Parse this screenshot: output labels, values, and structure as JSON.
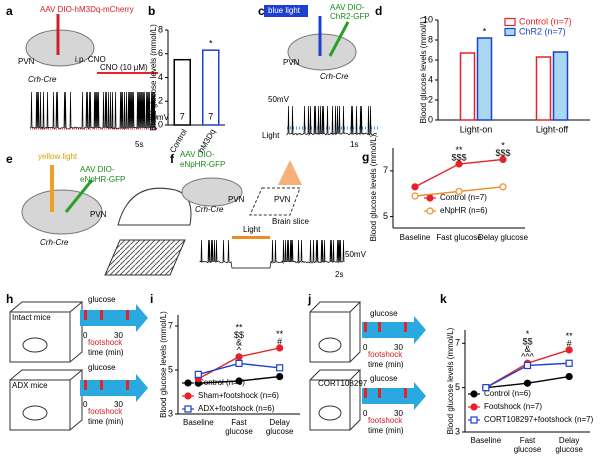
{
  "panel_labels": [
    "a",
    "b",
    "c",
    "d",
    "e",
    "f",
    "g",
    "h",
    "i",
    "j",
    "k"
  ],
  "texts": [
    "AAV DIO-hM3Dq-mCherry",
    "PVN",
    "i.p. CNO",
    "Crh-Cre",
    "CNO (10 μM)",
    "20mV",
    "5s",
    "blue light",
    "AAV DIO-",
    "ChR2-GFP",
    "PVN",
    "Crh-Cre",
    "50mV",
    "Light",
    "1s",
    "yellow light",
    "AAV DIO-",
    "eNpHR-GFP",
    "PVN",
    "Crh-Cre",
    "AAV DIO-",
    "eNpHR-GFP",
    "PVN",
    "Crh-Cre",
    "Brain slice",
    "PVN",
    "Light",
    "50mV",
    "2s",
    "Intact mice",
    "glucose",
    "0",
    "30",
    "footshock",
    "time (min)",
    "ADX mice",
    "glucose",
    "0",
    "30",
    "footshock",
    "time (min)",
    "glucose",
    "0",
    "30",
    "footshock",
    "time (min)",
    "CORT108297",
    "glucose",
    "0",
    "30",
    "footshock",
    "time (min)"
  ],
  "chart_data": [
    {
      "type": "bar",
      "ylabel": "Blood glucose levels (mmol/L)",
      "categories": [
        "Control",
        "hM3Dq"
      ],
      "values": [
        5.5,
        6.3
      ],
      "colors": [
        "#000000",
        "#1f3fd0"
      ],
      "n_labels": [
        "7",
        "7"
      ],
      "annotations": [
        [],
        [
          "*"
        ]
      ],
      "ylim": [
        0,
        8
      ],
      "yticks": [
        0,
        2,
        4,
        6,
        8
      ]
    },
    {
      "type": "bar",
      "ylabel": "Blood glucose levels (mmol/L)",
      "categories": [
        "Light-on",
        "Light-off"
      ],
      "series": [
        {
          "name": "Control (n=7)",
          "color": "#e8202a",
          "fill": "#ffffff",
          "values": [
            6.7,
            6.3
          ]
        },
        {
          "name": "ChR2 (n=7)",
          "color": "#1f3fd0",
          "fill": "#a9d8f2",
          "values": [
            8.2,
            6.8
          ]
        }
      ],
      "annotations": [
        [
          "*"
        ],
        []
      ],
      "ylim": [
        0,
        10
      ],
      "yticks": [
        0,
        2,
        4,
        6,
        8,
        10
      ]
    },
    {
      "type": "line",
      "ylabel": "Blood glucose levels (mmol/L)",
      "categories": [
        "Baseline",
        "Fast glucose",
        "Delay glucose"
      ],
      "series": [
        {
          "name": "Control (n=7)",
          "color": "#e8202a",
          "marker": "circle",
          "filled": true,
          "values": [
            6.3,
            7.3,
            7.5
          ]
        },
        {
          "name": "eNpHR (n=6)",
          "color": "#f08a24",
          "marker": "circle",
          "filled": false,
          "values": [
            5.9,
            6.1,
            6.3
          ]
        }
      ],
      "annotations": [
        [],
        [
          "**",
          "$$$"
        ],
        [
          "*",
          "$$$"
        ]
      ],
      "ylim": [
        4.5,
        8
      ],
      "yticks": [
        5,
        7
      ]
    },
    {
      "type": "line",
      "ylabel": "Blood glucose levels (mmol/L)",
      "categories": [
        "Baseline",
        "Fast glucose",
        "Delay glucose"
      ],
      "series": [
        {
          "name": "Control (n=6)",
          "color": "#000000",
          "marker": "circle",
          "filled": true,
          "values": [
            4.4,
            4.5,
            4.7
          ]
        },
        {
          "name": "Sham+footshock (n=6)",
          "color": "#e8202a",
          "marker": "circle",
          "filled": true,
          "values": [
            4.6,
            5.6,
            6.0
          ]
        },
        {
          "name": "ADX+footshock (n=6)",
          "color": "#1f3fd0",
          "marker": "square",
          "filled": false,
          "values": [
            4.8,
            5.3,
            5.1
          ]
        }
      ],
      "annotations": [
        [],
        [
          "**",
          "$$",
          "&",
          "^"
        ],
        [
          "**",
          "#"
        ]
      ],
      "ylim": [
        3,
        7.5
      ],
      "yticks": [
        3,
        5,
        7
      ]
    },
    {
      "type": "line",
      "ylabel": "Blood glucose levels (mmol/L)",
      "categories": [
        "Baseline",
        "Fast glucose",
        "Delay glucose"
      ],
      "series": [
        {
          "name": "Control (n=6)",
          "color": "#000000",
          "marker": "circle",
          "filled": true,
          "values": [
            5.0,
            5.2,
            5.5
          ]
        },
        {
          "name": "Footshock (n=7)",
          "color": "#e8202a",
          "marker": "circle",
          "filled": true,
          "values": [
            5.0,
            6.1,
            6.7
          ]
        },
        {
          "name": "CORT108297+footshock (n=7)",
          "color": "#1f3fd0",
          "marker": "square",
          "filled": false,
          "values": [
            5.0,
            6.0,
            6.1
          ]
        }
      ],
      "annotations": [
        [],
        [
          "*",
          "$$",
          "&",
          "^^^"
        ],
        [
          "**",
          "#"
        ]
      ],
      "ylim": [
        3,
        7.6
      ],
      "yticks": [
        3,
        5,
        7
      ]
    }
  ]
}
